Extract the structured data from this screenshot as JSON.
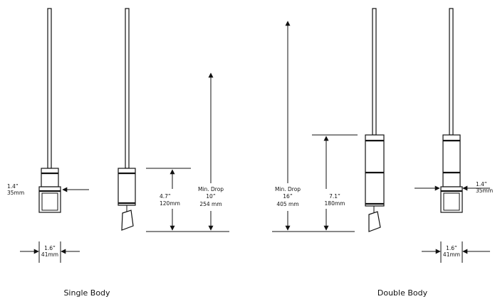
{
  "captions": {
    "single": "Single Body",
    "double": "Double Body"
  },
  "single": {
    "body_diameter_in": "1.4”",
    "body_diameter_mm": "35mm",
    "cap_diameter_in": "1.6”",
    "cap_diameter_mm": "41mm",
    "body_height_in": "4.7”",
    "body_height_mm": "120mm",
    "min_drop_label": "Min. Drop",
    "min_drop_in": "10”",
    "min_drop_mm": "254 mm"
  },
  "double": {
    "min_drop_label": "Min. Drop",
    "min_drop_in": "16”",
    "min_drop_mm": "405 mm",
    "body_height_in": "7.1”",
    "body_height_mm": "180mm",
    "body_diameter_in": "1.4”",
    "body_diameter_mm": "35mm",
    "cap_diameter_in": "1.6”",
    "cap_diameter_mm": "41mm"
  }
}
